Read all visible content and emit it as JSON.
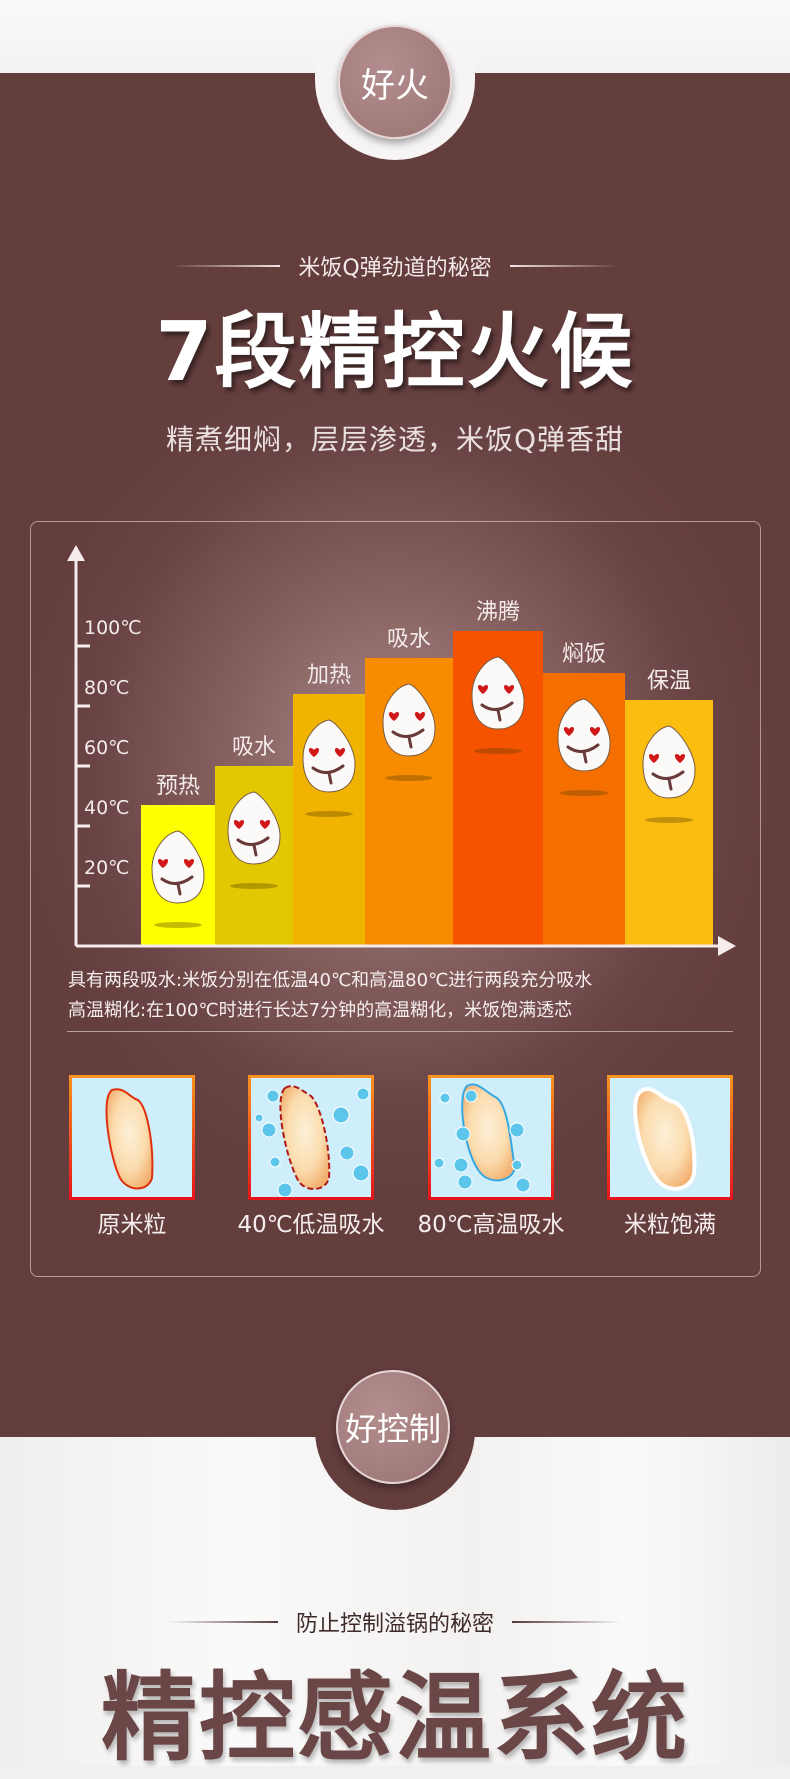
{
  "section1": {
    "badge": "好火",
    "subtitle": "米饭Q弹劲道的秘密",
    "title": "7段精控火候",
    "tagline": "精煮细焖，层层渗透，米饭Q弹香甜"
  },
  "chart_data": {
    "type": "bar",
    "title": "",
    "xlabel": "",
    "ylabel": "",
    "yticks": [
      "20℃",
      "40℃",
      "60℃",
      "80℃",
      "100℃"
    ],
    "ylim": [
      0,
      120
    ],
    "categories": [
      "预热",
      "吸水",
      "加热",
      "吸水",
      "沸腾",
      "焖饭",
      "保温"
    ],
    "values": [
      47,
      60,
      84,
      96,
      105,
      91,
      82
    ],
    "colors": [
      "#ffff00",
      "#e2c800",
      "#f0b400",
      "#f78c00",
      "#f55300",
      "#f56f00",
      "#fbbd10"
    ]
  },
  "captions": [
    "具有两段吸水:米饭分别在低温40℃和高温80℃进行两段充分吸水",
    "高温糊化:在100℃时进行长达7分钟的高温糊化，米饭饱满透芯"
  ],
  "stages": [
    {
      "label": "原米粒"
    },
    {
      "label": "40℃低温吸水"
    },
    {
      "label": "80℃高温吸水"
    },
    {
      "label": "米粒饱满"
    }
  ],
  "section2": {
    "badge": "好控制",
    "subtitle": "防止控制溢锅的秘密",
    "title": "精控感温系统"
  }
}
